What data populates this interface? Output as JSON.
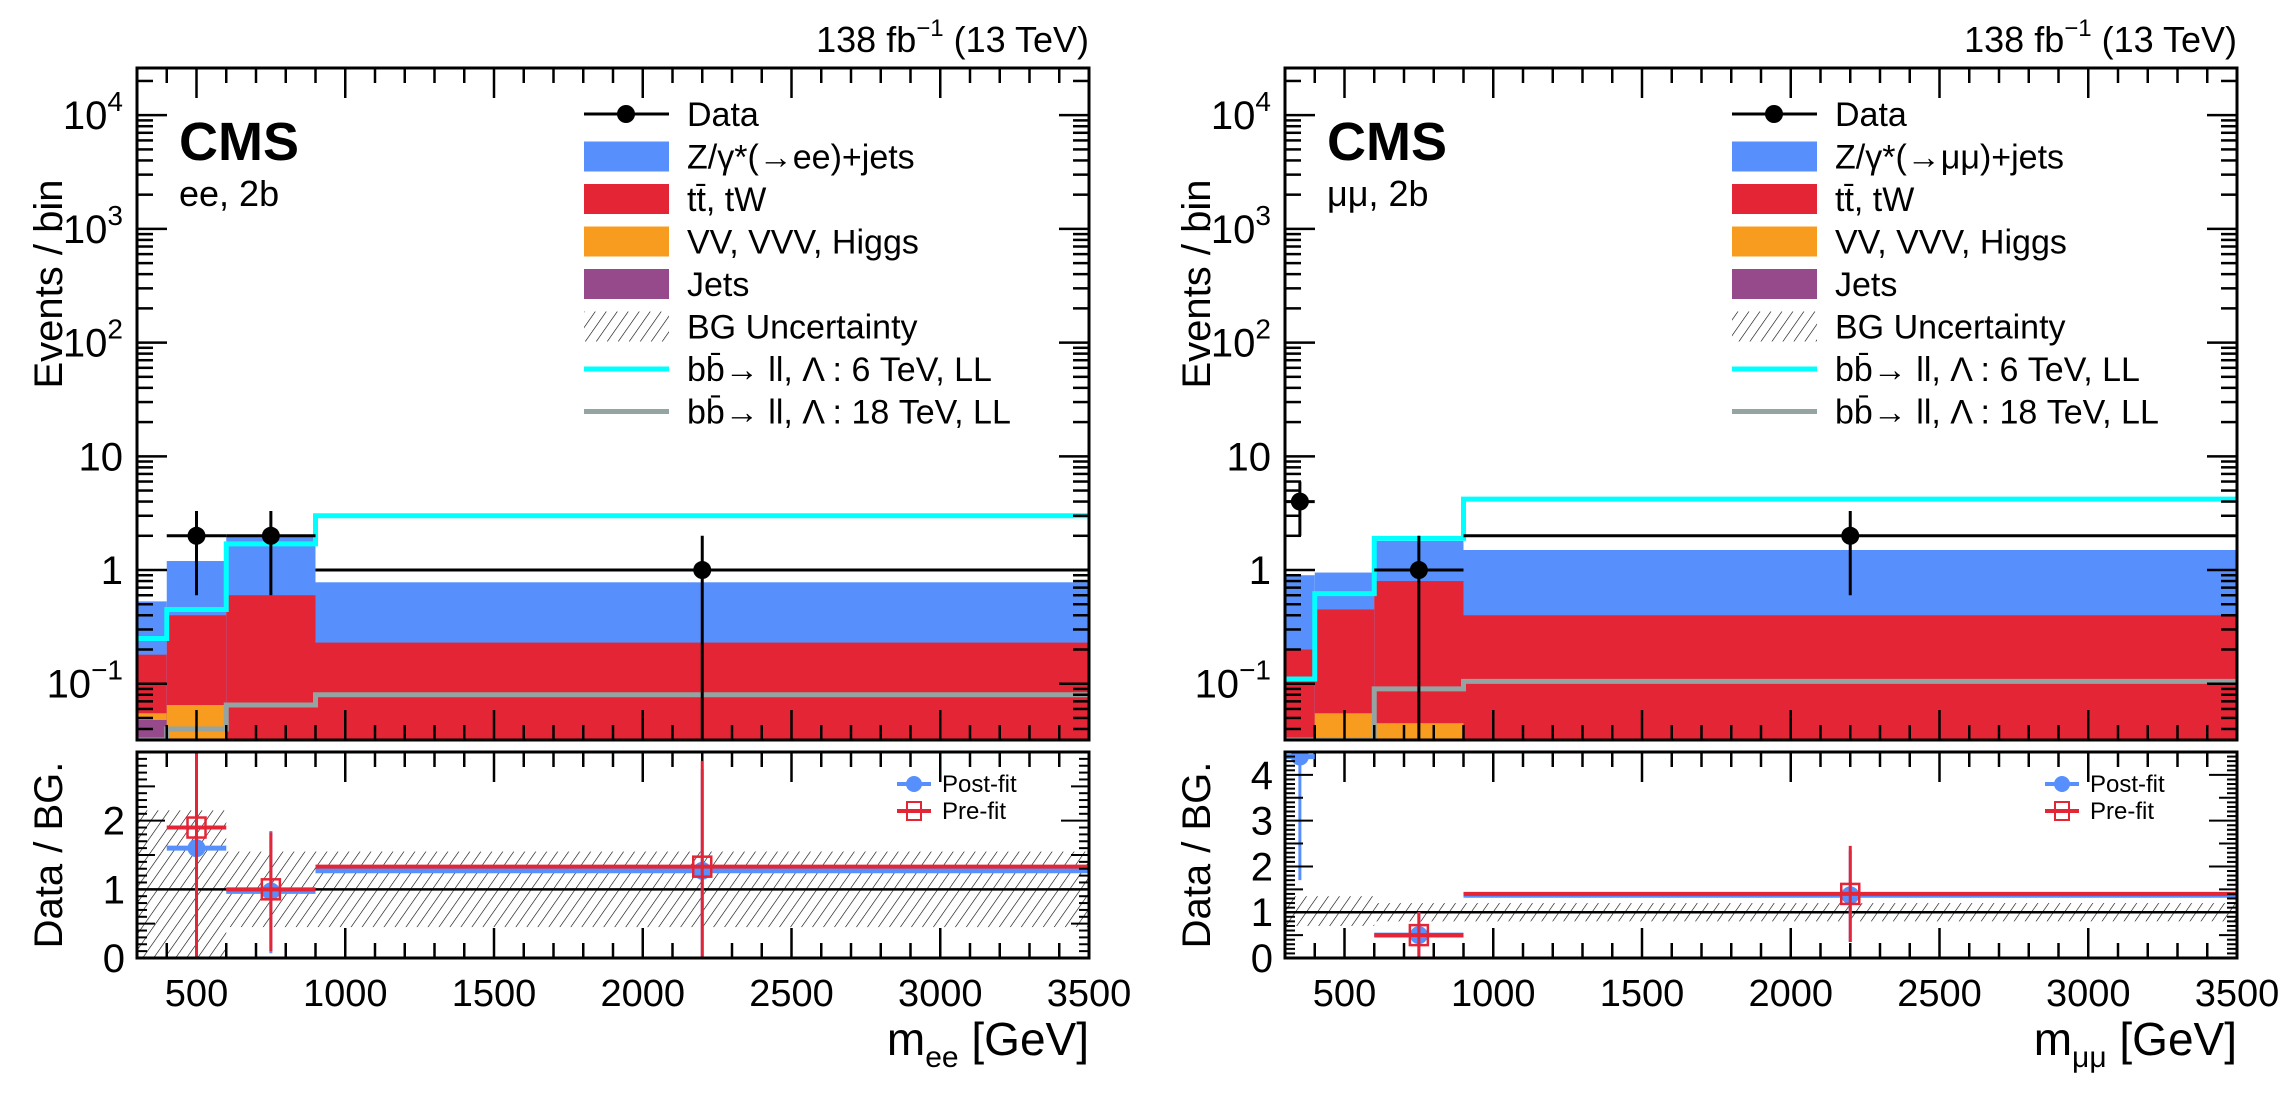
{
  "chart_data": [
    {
      "type": "bar",
      "panel": "ee",
      "lumi_label": "138 fb",
      "lumi_sup": "−1",
      "lumi_energy": "(13 TeV)",
      "cms_label": "CMS",
      "channel_label": "ee, 2b",
      "ylabel": "Events / bin",
      "ratio_ylabel": "Data / BG.",
      "xlabel": "m",
      "xlabel_sub": "ee",
      "xlabel_unit": "[GeV]",
      "xlim": [
        300,
        3500
      ],
      "ylim": [
        0.032,
        26000
      ],
      "yscale": "log",
      "ratio_ylim": [
        0,
        3
      ],
      "ratio_yticks": [
        0,
        1,
        2
      ],
      "xticks": [
        500,
        1000,
        1500,
        2000,
        2500,
        3000,
        3500
      ],
      "yticks": [
        {
          "v": 0.1,
          "base": "10",
          "sup": "−1"
        },
        {
          "v": 1,
          "base": "1",
          "sup": ""
        },
        {
          "v": 10,
          "base": "10",
          "sup": ""
        },
        {
          "v": 100,
          "base": "10",
          "sup": "2"
        },
        {
          "v": 1000,
          "base": "10",
          "sup": "3"
        },
        {
          "v": 10000,
          "base": "10",
          "sup": "4"
        }
      ],
      "bin_edges": [
        300,
        400,
        600,
        900,
        3500
      ],
      "stack": [
        {
          "name": "Jets",
          "color": "#964a8b",
          "values": [
            0.048,
            0,
            0,
            0
          ]
        },
        {
          "name": "VV, VVV, Higgs",
          "color": "#f89c20",
          "values": [
            0.0,
            0.032,
            0,
            0
          ]
        },
        {
          "name": "tt, tW",
          "color": "#e42536",
          "values": [
            0.18,
            0.4,
            0.6,
            0.23
          ]
        },
        {
          "name": "Z/γ*(→ee)+jets",
          "color": "#5790fc",
          "values": [
            0.3,
            0.78,
            1.4,
            0.55
          ]
        }
      ],
      "stack_totals": [
        0.53,
        1.2,
        2.0,
        0.78
      ],
      "jets_tops": [
        0.048,
        0.032,
        0.032,
        0.032
      ],
      "vv_tops": [
        0.055,
        0.065,
        0.032,
        0.032
      ],
      "signal_6TeV": [
        0.25,
        0.45,
        1.7,
        3.0
      ],
      "signal_18TeV": [
        0.032,
        0.04,
        0.065,
        0.08
      ],
      "data": [
        {
          "x": 500,
          "xlo": 400,
          "xhi": 600,
          "y": 2,
          "ylo": 0.6,
          "yhi": 3.3
        },
        {
          "x": 750,
          "xlo": 600,
          "xhi": 900,
          "y": 2,
          "ylo": 0.6,
          "yhi": 3.3
        },
        {
          "x": 2200,
          "xlo": 900,
          "xhi": 3500,
          "y": 1,
          "ylo": 0.032,
          "yhi": 2.0
        }
      ],
      "ratio_unc": [
        {
          "xlo": 300,
          "xhi": 600,
          "lo": 0.0,
          "hi": 2.15
        },
        {
          "xlo": 600,
          "xhi": 900,
          "lo": 0.45,
          "hi": 1.55
        },
        {
          "xlo": 900,
          "xhi": 3500,
          "lo": 0.45,
          "hi": 1.55
        }
      ],
      "ratio_postfit": [
        {
          "x": 500,
          "xlo": 400,
          "xhi": 600,
          "y": 1.6,
          "ylo": 0.0,
          "yhi": 3.0
        },
        {
          "x": 750,
          "xlo": 600,
          "xhi": 900,
          "y": 0.97,
          "ylo": 0.07,
          "yhi": 1.85
        },
        {
          "x": 2200,
          "xlo": 900,
          "xhi": 3500,
          "y": 1.27,
          "ylo": 0.0,
          "yhi": 2.75
        }
      ],
      "ratio_prefit": [
        {
          "x": 500,
          "xlo": 400,
          "xhi": 600,
          "y": 1.9,
          "ylo": 0.0,
          "yhi": 3.0
        },
        {
          "x": 750,
          "xlo": 600,
          "xhi": 900,
          "y": 1.0,
          "ylo": 0.1,
          "yhi": 1.83
        },
        {
          "x": 2200,
          "xlo": 900,
          "xhi": 3500,
          "y": 1.33,
          "ylo": 0.0,
          "yhi": 2.87
        }
      ]
    },
    {
      "type": "bar",
      "panel": "mumu",
      "lumi_label": "138 fb",
      "lumi_sup": "−1",
      "lumi_energy": "(13 TeV)",
      "cms_label": "CMS",
      "channel_label": "μμ, 2b",
      "ylabel": "Events / bin",
      "ratio_ylabel": "Data / BG.",
      "xlabel": "m",
      "xlabel_sub": "μμ",
      "xlabel_unit": "[GeV]",
      "xlim": [
        300,
        3500
      ],
      "ylim": [
        0.032,
        26000
      ],
      "yscale": "log",
      "ratio_ylim": [
        0,
        4.5
      ],
      "ratio_yticks": [
        0,
        1,
        2,
        3,
        4
      ],
      "xticks": [
        500,
        1000,
        1500,
        2000,
        2500,
        3000,
        3500
      ],
      "yticks": [
        {
          "v": 0.1,
          "base": "10",
          "sup": "−1"
        },
        {
          "v": 1,
          "base": "1",
          "sup": ""
        },
        {
          "v": 10,
          "base": "10",
          "sup": ""
        },
        {
          "v": 100,
          "base": "10",
          "sup": "2"
        },
        {
          "v": 1000,
          "base": "10",
          "sup": "3"
        },
        {
          "v": 10000,
          "base": "10",
          "sup": "4"
        }
      ],
      "bin_edges": [
        300,
        400,
        600,
        900,
        3500
      ],
      "stack": [
        {
          "name": "Jets",
          "color": "#964a8b",
          "values": [
            0,
            0,
            0,
            0
          ]
        },
        {
          "name": "VV, VVV, Higgs",
          "color": "#f89c20",
          "values": [
            0.0,
            0.055,
            0.045,
            0.033
          ]
        },
        {
          "name": "tt, tW",
          "color": "#e42536",
          "values": [
            0.2,
            0.45,
            0.8,
            0.4
          ]
        },
        {
          "name": "Z/γ*(→μμ)+jets",
          "color": "#5790fc",
          "values": [
            0.7,
            0.45,
            1.0,
            1.1
          ]
        }
      ],
      "stack_totals": [
        0.9,
        0.95,
        1.8,
        1.5
      ],
      "jets_tops": [
        0.032,
        0.032,
        0.032,
        0.032
      ],
      "vv_tops": [
        0.032,
        0.055,
        0.045,
        0.033
      ],
      "signal_6TeV": [
        0.11,
        0.62,
        1.9,
        4.2
      ],
      "signal_18TeV": [
        0.029,
        0.029,
        0.09,
        0.105
      ],
      "data": [
        {
          "x": 350,
          "xlo": 300,
          "xhi": 400,
          "y": 4,
          "ylo": 2.0,
          "yhi": 6.0
        },
        {
          "x": 750,
          "xlo": 600,
          "xhi": 900,
          "y": 1,
          "ylo": 0.032,
          "yhi": 2.0
        },
        {
          "x": 2200,
          "xlo": 900,
          "xhi": 3500,
          "y": 2,
          "ylo": 0.6,
          "yhi": 3.3
        }
      ],
      "ratio_unc": [
        {
          "xlo": 300,
          "xhi": 600,
          "lo": 0.7,
          "hi": 1.35
        },
        {
          "xlo": 600,
          "xhi": 900,
          "lo": 0.8,
          "hi": 1.2
        },
        {
          "xlo": 900,
          "xhi": 3500,
          "lo": 0.8,
          "hi": 1.2
        }
      ],
      "ratio_postfit": [
        {
          "x": 350,
          "xlo": 300,
          "xhi": 400,
          "y": 4.4,
          "ylo": 1.7,
          "yhi": 4.5
        },
        {
          "x": 750,
          "xlo": 600,
          "xhi": 900,
          "y": 0.5,
          "ylo": 0.0,
          "yhi": 1.0
        },
        {
          "x": 2200,
          "xlo": 900,
          "xhi": 3500,
          "y": 1.37,
          "ylo": 0.35,
          "yhi": 2.35
        }
      ],
      "ratio_prefit": [
        {
          "x": 750,
          "xlo": 600,
          "xhi": 900,
          "y": 0.5,
          "ylo": 0.0,
          "yhi": 1.0
        },
        {
          "x": 2200,
          "xlo": 900,
          "xhi": 3500,
          "y": 1.4,
          "ylo": 0.35,
          "yhi": 2.45
        }
      ]
    }
  ],
  "legend": [
    {
      "kind": "marker",
      "label": "Data"
    },
    {
      "kind": "fill",
      "color": "#5790fc",
      "label_ee": "Z/γ*(→ee)+jets",
      "label_mumu": "Z/γ*(→μμ)+jets"
    },
    {
      "kind": "fill",
      "color": "#e42536",
      "label": "tt̄, tW"
    },
    {
      "kind": "fill",
      "color": "#f89c20",
      "label": "VV, VVV, Higgs"
    },
    {
      "kind": "fill",
      "color": "#964a8b",
      "label": "Jets"
    },
    {
      "kind": "hatch",
      "label": "BG Uncertainty"
    },
    {
      "kind": "line",
      "color": "#00ffff",
      "label": "bb̄→ ll,   Λ : 6 TeV, LL"
    },
    {
      "kind": "line",
      "color": "#94a4a2",
      "label": "bb̄→ ll,   Λ : 18 TeV, LL"
    }
  ],
  "ratio_legend": [
    {
      "kind": "postfit",
      "color": "#5790fc",
      "label": "Post-fit"
    },
    {
      "kind": "prefit",
      "color": "#e42536",
      "label": "Pre-fit"
    }
  ]
}
